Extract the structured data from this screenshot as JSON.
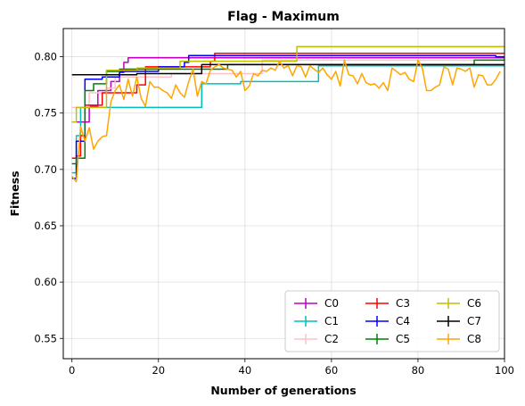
{
  "chart_data": {
    "type": "line",
    "title": "Flag - Maximum",
    "xlabel": "Number of generations",
    "ylabel": "Fitness",
    "xlim": [
      -2,
      100
    ],
    "ylim": [
      0.532,
      0.825
    ],
    "xticks": [
      0,
      20,
      40,
      60,
      80,
      100
    ],
    "yticks": [
      0.55,
      0.6,
      0.65,
      0.7,
      0.75,
      0.8
    ],
    "ytick_labels": [
      "0.55",
      "0.60",
      "0.65",
      "0.70",
      "0.75",
      "0.80"
    ],
    "grid": true,
    "legend": {
      "placement": "lower-right",
      "columns": 3
    },
    "series": [
      {
        "name": "C0",
        "color": "#bf00bf",
        "step": true,
        "points": [
          [
            0,
            0.742
          ],
          [
            3,
            0.742
          ],
          [
            4,
            0.756
          ],
          [
            6,
            0.77
          ],
          [
            9,
            0.778
          ],
          [
            11,
            0.786
          ],
          [
            12,
            0.795
          ],
          [
            13,
            0.799
          ],
          [
            100,
            0.799
          ]
        ]
      },
      {
        "name": "C1",
        "color": "#00bfbf",
        "step": true,
        "points": [
          [
            0,
            0.697
          ],
          [
            1,
            0.73
          ],
          [
            2,
            0.755
          ],
          [
            29,
            0.755
          ],
          [
            30,
            0.776
          ],
          [
            38,
            0.776
          ],
          [
            39,
            0.778
          ],
          [
            56,
            0.778
          ],
          [
            57,
            0.792
          ],
          [
            100,
            0.792
          ]
        ]
      },
      {
        "name": "C2",
        "color": "#ffc0cb",
        "step": true,
        "points": [
          [
            0,
            0.755
          ],
          [
            3,
            0.755
          ],
          [
            4,
            0.768
          ],
          [
            8,
            0.772
          ],
          [
            10,
            0.782
          ],
          [
            22,
            0.782
          ],
          [
            23,
            0.785
          ],
          [
            43,
            0.785
          ],
          [
            44,
            0.797
          ],
          [
            100,
            0.797
          ]
        ]
      },
      {
        "name": "C3",
        "color": "#ff0000",
        "step": true,
        "points": [
          [
            0,
            0.71
          ],
          [
            1,
            0.712
          ],
          [
            2,
            0.73
          ],
          [
            3,
            0.757
          ],
          [
            7,
            0.768
          ],
          [
            15,
            0.775
          ],
          [
            17,
            0.791
          ],
          [
            32,
            0.796
          ],
          [
            33,
            0.803
          ],
          [
            100,
            0.803
          ]
        ]
      },
      {
        "name": "C4",
        "color": "#0000ff",
        "step": true,
        "points": [
          [
            0,
            0.692
          ],
          [
            1,
            0.725
          ],
          [
            3,
            0.78
          ],
          [
            7,
            0.782
          ],
          [
            11,
            0.787
          ],
          [
            20,
            0.791
          ],
          [
            26,
            0.795
          ],
          [
            27,
            0.801
          ],
          [
            97,
            0.801
          ],
          [
            98,
            0.8
          ],
          [
            100,
            0.8
          ]
        ]
      },
      {
        "name": "C5",
        "color": "#008000",
        "step": true,
        "points": [
          [
            0,
            0.705
          ],
          [
            1,
            0.71
          ],
          [
            3,
            0.77
          ],
          [
            5,
            0.776
          ],
          [
            8,
            0.787
          ],
          [
            11,
            0.789
          ],
          [
            35,
            0.789
          ],
          [
            36,
            0.793
          ],
          [
            92,
            0.793
          ],
          [
            93,
            0.797
          ],
          [
            100,
            0.797
          ]
        ]
      },
      {
        "name": "C6",
        "color": "#bfbf00",
        "step": true,
        "points": [
          [
            0,
            0.742
          ],
          [
            1,
            0.755
          ],
          [
            8,
            0.788
          ],
          [
            15,
            0.79
          ],
          [
            25,
            0.796
          ],
          [
            51,
            0.796
          ],
          [
            52,
            0.809
          ],
          [
            100,
            0.809
          ]
        ]
      },
      {
        "name": "C7",
        "color": "#000000",
        "step": true,
        "points": [
          [
            0,
            0.784
          ],
          [
            14,
            0.784
          ],
          [
            15,
            0.785
          ],
          [
            29,
            0.785
          ],
          [
            30,
            0.793
          ],
          [
            100,
            0.793
          ]
        ]
      },
      {
        "name": "C8",
        "color": "#ffa500",
        "step": false,
        "points": [
          [
            0,
            0.694
          ],
          [
            1,
            0.689
          ],
          [
            2,
            0.738
          ],
          [
            3,
            0.725
          ],
          [
            4,
            0.737
          ],
          [
            5,
            0.718
          ],
          [
            6,
            0.725
          ],
          [
            7,
            0.729
          ],
          [
            8,
            0.73
          ],
          [
            9,
            0.76
          ],
          [
            10,
            0.77
          ],
          [
            11,
            0.775
          ],
          [
            12,
            0.762
          ],
          [
            13,
            0.78
          ],
          [
            14,
            0.765
          ],
          [
            15,
            0.782
          ],
          [
            16,
            0.763
          ],
          [
            17,
            0.756
          ],
          [
            18,
            0.778
          ],
          [
            19,
            0.773
          ],
          [
            20,
            0.773
          ],
          [
            21,
            0.77
          ],
          [
            22,
            0.768
          ],
          [
            23,
            0.763
          ],
          [
            24,
            0.775
          ],
          [
            25,
            0.768
          ],
          [
            26,
            0.764
          ],
          [
            27,
            0.778
          ],
          [
            28,
            0.789
          ],
          [
            29,
            0.765
          ],
          [
            30,
            0.778
          ],
          [
            31,
            0.776
          ],
          [
            32,
            0.788
          ],
          [
            33,
            0.791
          ],
          [
            34,
            0.793
          ],
          [
            35,
            0.79
          ],
          [
            36,
            0.789
          ],
          [
            37,
            0.788
          ],
          [
            38,
            0.782
          ],
          [
            39,
            0.787
          ],
          [
            40,
            0.77
          ],
          [
            41,
            0.774
          ],
          [
            42,
            0.785
          ],
          [
            43,
            0.783
          ],
          [
            44,
            0.788
          ],
          [
            45,
            0.787
          ],
          [
            46,
            0.79
          ],
          [
            47,
            0.788
          ],
          [
            48,
            0.796
          ],
          [
            49,
            0.79
          ],
          [
            50,
            0.792
          ],
          [
            51,
            0.783
          ],
          [
            52,
            0.792
          ],
          [
            53,
            0.791
          ],
          [
            54,
            0.782
          ],
          [
            55,
            0.792
          ],
          [
            56,
            0.789
          ],
          [
            57,
            0.786
          ],
          [
            58,
            0.79
          ],
          [
            59,
            0.784
          ],
          [
            60,
            0.78
          ],
          [
            61,
            0.787
          ],
          [
            62,
            0.774
          ],
          [
            63,
            0.797
          ],
          [
            64,
            0.784
          ],
          [
            65,
            0.783
          ],
          [
            66,
            0.776
          ],
          [
            67,
            0.785
          ],
          [
            68,
            0.777
          ],
          [
            69,
            0.775
          ],
          [
            70,
            0.776
          ],
          [
            71,
            0.772
          ],
          [
            72,
            0.777
          ],
          [
            73,
            0.77
          ],
          [
            74,
            0.79
          ],
          [
            75,
            0.787
          ],
          [
            76,
            0.784
          ],
          [
            77,
            0.786
          ],
          [
            78,
            0.78
          ],
          [
            79,
            0.778
          ],
          [
            80,
            0.797
          ],
          [
            81,
            0.79
          ],
          [
            82,
            0.77
          ],
          [
            83,
            0.77
          ],
          [
            84,
            0.773
          ],
          [
            85,
            0.775
          ],
          [
            86,
            0.791
          ],
          [
            87,
            0.789
          ],
          [
            88,
            0.775
          ],
          [
            89,
            0.79
          ],
          [
            90,
            0.789
          ],
          [
            91,
            0.787
          ],
          [
            92,
            0.79
          ],
          [
            93,
            0.773
          ],
          [
            94,
            0.784
          ],
          [
            95,
            0.783
          ],
          [
            96,
            0.775
          ],
          [
            97,
            0.775
          ],
          [
            98,
            0.78
          ],
          [
            99,
            0.787
          ]
        ]
      }
    ]
  }
}
